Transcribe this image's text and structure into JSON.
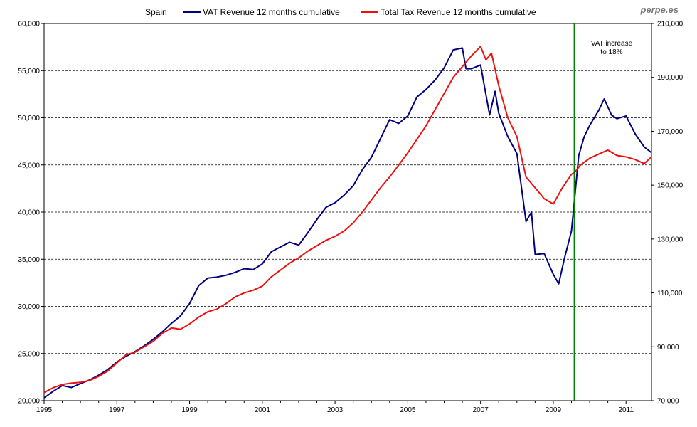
{
  "brand": "perpe.es",
  "chart_data": {
    "type": "line",
    "title": "Spain",
    "x_ticks": [
      "1995",
      "1997",
      "1999",
      "2001",
      "2003",
      "2005",
      "2007",
      "2009",
      "2011"
    ],
    "x_tick_values": [
      1995,
      1997,
      1999,
      2001,
      2003,
      2005,
      2007,
      2009,
      2011
    ],
    "xlim": [
      1995,
      2011.7
    ],
    "y_left": {
      "lim": [
        20000,
        60000
      ],
      "ticks": [
        20000,
        25000,
        30000,
        35000,
        40000,
        45000,
        50000,
        55000,
        60000
      ],
      "tick_labels": [
        "20,000",
        "25,000",
        "30,000",
        "35,000",
        "40,000",
        "45,000",
        "50,000",
        "55,000",
        "60,000"
      ]
    },
    "y_right": {
      "lim": [
        70000,
        210000
      ],
      "ticks": [
        70000,
        90000,
        110000,
        130000,
        150000,
        170000,
        190000,
        210000
      ],
      "tick_labels": [
        "70,000",
        "90,000",
        "110,000",
        "130,000",
        "150,000",
        "170,000",
        "190,000",
        "210,000"
      ]
    },
    "grid": "horizontal-dashed",
    "legend_position": "top",
    "series": [
      {
        "name": "VAT Revenue 12 months cumulative",
        "axis": "left",
        "color": "#000080",
        "points": [
          [
            1995.0,
            20300
          ],
          [
            1995.25,
            21000
          ],
          [
            1995.5,
            21600
          ],
          [
            1995.75,
            21400
          ],
          [
            1996.0,
            21800
          ],
          [
            1996.25,
            22200
          ],
          [
            1996.5,
            22700
          ],
          [
            1996.75,
            23300
          ],
          [
            1997.0,
            24100
          ],
          [
            1997.25,
            24700
          ],
          [
            1997.5,
            25200
          ],
          [
            1997.75,
            25800
          ],
          [
            1998.0,
            26500
          ],
          [
            1998.25,
            27300
          ],
          [
            1998.5,
            28200
          ],
          [
            1998.75,
            29000
          ],
          [
            1999.0,
            30300
          ],
          [
            1999.25,
            32200
          ],
          [
            1999.5,
            33000
          ],
          [
            1999.75,
            33100
          ],
          [
            2000.0,
            33300
          ],
          [
            2000.25,
            33600
          ],
          [
            2000.5,
            34000
          ],
          [
            2000.75,
            33900
          ],
          [
            2001.0,
            34500
          ],
          [
            2001.25,
            35800
          ],
          [
            2001.5,
            36300
          ],
          [
            2001.75,
            36800
          ],
          [
            2002.0,
            36500
          ],
          [
            2002.25,
            37800
          ],
          [
            2002.5,
            39200
          ],
          [
            2002.75,
            40500
          ],
          [
            2003.0,
            41000
          ],
          [
            2003.25,
            41800
          ],
          [
            2003.5,
            42800
          ],
          [
            2003.75,
            44500
          ],
          [
            2004.0,
            45800
          ],
          [
            2004.25,
            47800
          ],
          [
            2004.5,
            49800
          ],
          [
            2004.75,
            49400
          ],
          [
            2005.0,
            50200
          ],
          [
            2005.25,
            52200
          ],
          [
            2005.5,
            53000
          ],
          [
            2005.75,
            54000
          ],
          [
            2006.0,
            55300
          ],
          [
            2006.25,
            57200
          ],
          [
            2006.5,
            57400
          ],
          [
            2006.6,
            55200
          ],
          [
            2006.75,
            55200
          ],
          [
            2007.0,
            55600
          ],
          [
            2007.25,
            50300
          ],
          [
            2007.4,
            52800
          ],
          [
            2007.5,
            50500
          ],
          [
            2007.75,
            48000
          ],
          [
            2008.0,
            46200
          ],
          [
            2008.25,
            39000
          ],
          [
            2008.4,
            40000
          ],
          [
            2008.5,
            35500
          ],
          [
            2008.75,
            35600
          ],
          [
            2009.0,
            33400
          ],
          [
            2009.15,
            32400
          ],
          [
            2009.3,
            35000
          ],
          [
            2009.5,
            38000
          ],
          [
            2009.6,
            42000
          ],
          [
            2009.7,
            46000
          ],
          [
            2009.85,
            48000
          ],
          [
            2010.0,
            49200
          ],
          [
            2010.25,
            50800
          ],
          [
            2010.4,
            52000
          ],
          [
            2010.6,
            50300
          ],
          [
            2010.75,
            49900
          ],
          [
            2011.0,
            50200
          ],
          [
            2011.25,
            48300
          ],
          [
            2011.5,
            46900
          ],
          [
            2011.7,
            46300
          ]
        ]
      },
      {
        "name": "Total Tax Revenue 12 months cumulative",
        "axis": "right",
        "color": "#ee1111",
        "points": [
          [
            1995.0,
            73000
          ],
          [
            1995.25,
            74800
          ],
          [
            1995.5,
            76000
          ],
          [
            1995.75,
            76500
          ],
          [
            1996.0,
            76800
          ],
          [
            1996.25,
            77500
          ],
          [
            1996.5,
            79000
          ],
          [
            1996.75,
            81000
          ],
          [
            1997.0,
            84000
          ],
          [
            1997.25,
            87000
          ],
          [
            1997.5,
            88000
          ],
          [
            1997.75,
            90000
          ],
          [
            1998.0,
            92000
          ],
          [
            1998.25,
            95000
          ],
          [
            1998.5,
            97000
          ],
          [
            1998.75,
            96500
          ],
          [
            1999.0,
            98500
          ],
          [
            1999.25,
            101000
          ],
          [
            1999.5,
            103000
          ],
          [
            1999.75,
            104000
          ],
          [
            2000.0,
            106000
          ],
          [
            2000.25,
            108500
          ],
          [
            2000.5,
            110000
          ],
          [
            2000.75,
            111000
          ],
          [
            2001.0,
            112500
          ],
          [
            2001.25,
            116000
          ],
          [
            2001.5,
            118500
          ],
          [
            2001.75,
            121000
          ],
          [
            2002.0,
            123000
          ],
          [
            2002.25,
            125500
          ],
          [
            2002.5,
            127500
          ],
          [
            2002.75,
            129500
          ],
          [
            2003.0,
            131000
          ],
          [
            2003.25,
            133000
          ],
          [
            2003.5,
            136000
          ],
          [
            2003.75,
            140000
          ],
          [
            2004.0,
            144500
          ],
          [
            2004.25,
            149000
          ],
          [
            2004.5,
            153000
          ],
          [
            2004.75,
            157500
          ],
          [
            2005.0,
            162000
          ],
          [
            2005.25,
            167000
          ],
          [
            2005.5,
            172000
          ],
          [
            2005.75,
            178000
          ],
          [
            2006.0,
            184000
          ],
          [
            2006.25,
            190000
          ],
          [
            2006.5,
            194000
          ],
          [
            2006.75,
            198000
          ],
          [
            2007.0,
            201500
          ],
          [
            2007.15,
            196500
          ],
          [
            2007.3,
            199000
          ],
          [
            2007.5,
            187000
          ],
          [
            2007.75,
            175000
          ],
          [
            2008.0,
            168000
          ],
          [
            2008.25,
            153000
          ],
          [
            2008.5,
            149000
          ],
          [
            2008.75,
            145000
          ],
          [
            2009.0,
            143000
          ],
          [
            2009.25,
            149000
          ],
          [
            2009.5,
            154000
          ],
          [
            2009.6,
            155000
          ],
          [
            2009.75,
            157500
          ],
          [
            2010.0,
            160000
          ],
          [
            2010.25,
            161500
          ],
          [
            2010.5,
            163000
          ],
          [
            2010.75,
            161000
          ],
          [
            2011.0,
            160500
          ],
          [
            2011.25,
            159500
          ],
          [
            2011.5,
            158000
          ],
          [
            2011.7,
            160500
          ]
        ]
      }
    ],
    "annotation": {
      "text_lines": [
        "VAT increase",
        "to 18%"
      ],
      "x": 2009.58,
      "color": "#008000"
    }
  }
}
